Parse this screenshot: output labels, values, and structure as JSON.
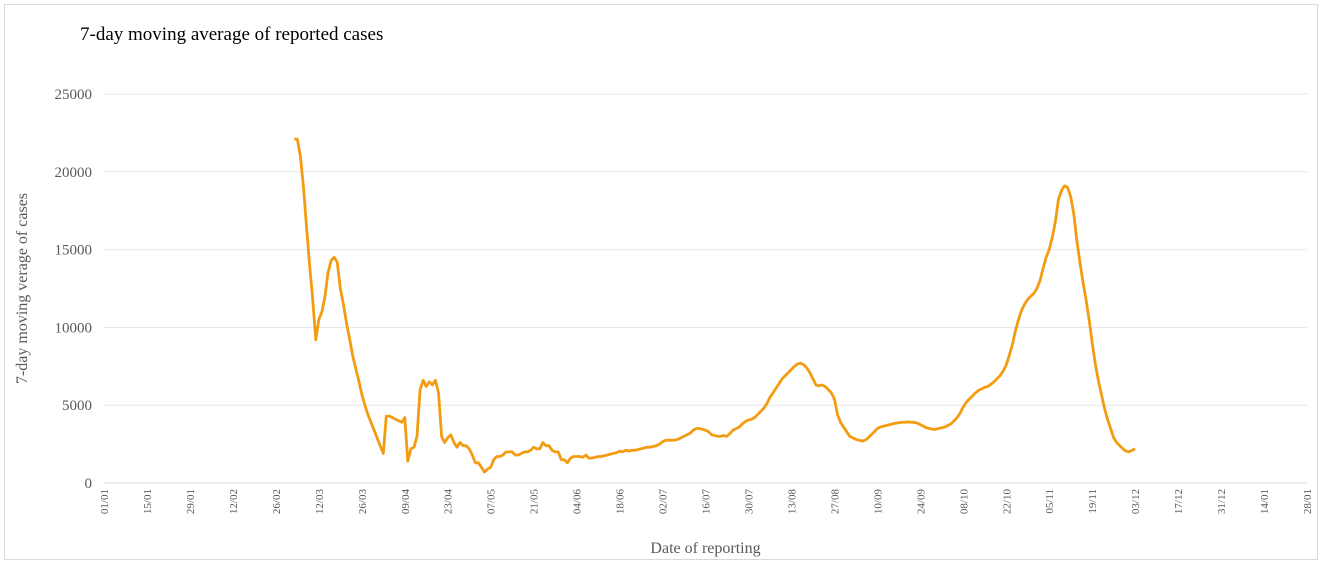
{
  "chart_data": {
    "type": "line",
    "title": "7-day moving average of reported cases",
    "xlabel": "Date of reporting",
    "ylabel": "7-day moving verage of cases",
    "ylim": [
      0,
      25000
    ],
    "yticks": [
      0,
      5000,
      10000,
      15000,
      20000,
      25000
    ],
    "xticks": [
      "01/01",
      "15/01",
      "29/01",
      "12/02",
      "26/02",
      "12/03",
      "26/03",
      "09/04",
      "23/04",
      "07/05",
      "21/05",
      "04/06",
      "18/06",
      "02/07",
      "16/07",
      "30/07",
      "13/08",
      "27/08",
      "10/09",
      "24/09",
      "08/10",
      "22/10",
      "05/11",
      "19/11",
      "03/12",
      "17/12",
      "31/12",
      "14/01",
      "28/01"
    ],
    "grid": "horizontal",
    "legend": "none",
    "color": "#F39C12",
    "series": [
      {
        "values": [
          [
            62,
            22100
          ],
          [
            63,
            22100
          ],
          [
            64,
            21000
          ],
          [
            65,
            19000
          ],
          [
            66,
            16500
          ],
          [
            67,
            14000
          ],
          [
            68,
            11800
          ],
          [
            69,
            9200
          ],
          [
            70,
            10500
          ],
          [
            71,
            11000
          ],
          [
            72,
            12000
          ],
          [
            73,
            13500
          ],
          [
            74,
            14300
          ],
          [
            75,
            14500
          ],
          [
            76,
            14200
          ],
          [
            77,
            12500
          ],
          [
            78,
            11500
          ],
          [
            79,
            10300
          ],
          [
            80,
            9300
          ],
          [
            81,
            8200
          ],
          [
            82,
            7400
          ],
          [
            83,
            6600
          ],
          [
            84,
            5700
          ],
          [
            85,
            5000
          ],
          [
            86,
            4400
          ],
          [
            87,
            3900
          ],
          [
            88,
            3400
          ],
          [
            89,
            2900
          ],
          [
            90,
            2400
          ],
          [
            91,
            1900
          ],
          [
            92,
            4300
          ],
          [
            93,
            4300
          ],
          [
            94,
            4200
          ],
          [
            95,
            4100
          ],
          [
            96,
            4000
          ],
          [
            97,
            3900
          ],
          [
            98,
            4200
          ],
          [
            99,
            1400
          ],
          [
            100,
            2200
          ],
          [
            101,
            2300
          ],
          [
            102,
            3000
          ],
          [
            103,
            6000
          ],
          [
            104,
            6600
          ],
          [
            105,
            6200
          ],
          [
            106,
            6500
          ],
          [
            107,
            6300
          ],
          [
            108,
            6600
          ],
          [
            109,
            5800
          ],
          [
            110,
            3000
          ],
          [
            111,
            2600
          ],
          [
            112,
            2900
          ],
          [
            113,
            3100
          ],
          [
            114,
            2600
          ],
          [
            115,
            2300
          ],
          [
            116,
            2600
          ],
          [
            117,
            2400
          ],
          [
            118,
            2400
          ],
          [
            119,
            2200
          ],
          [
            120,
            1800
          ],
          [
            121,
            1300
          ],
          [
            122,
            1300
          ],
          [
            123,
            1000
          ],
          [
            124,
            700
          ],
          [
            125,
            900
          ],
          [
            126,
            1000
          ],
          [
            127,
            1500
          ],
          [
            128,
            1700
          ],
          [
            129,
            1700
          ],
          [
            130,
            1800
          ],
          [
            131,
            2000
          ],
          [
            132,
            2000
          ],
          [
            133,
            2000
          ],
          [
            134,
            1800
          ],
          [
            135,
            1800
          ],
          [
            136,
            1900
          ],
          [
            137,
            2000
          ],
          [
            138,
            2000
          ],
          [
            139,
            2100
          ],
          [
            140,
            2300
          ],
          [
            141,
            2200
          ],
          [
            142,
            2200
          ],
          [
            143,
            2600
          ],
          [
            144,
            2400
          ],
          [
            145,
            2400
          ],
          [
            146,
            2100
          ],
          [
            147,
            2000
          ],
          [
            148,
            2000
          ],
          [
            149,
            1500
          ],
          [
            150,
            1500
          ],
          [
            151,
            1300
          ],
          [
            152,
            1600
          ],
          [
            153,
            1700
          ],
          [
            154,
            1700
          ],
          [
            155,
            1700
          ],
          [
            156,
            1650
          ],
          [
            157,
            1800
          ],
          [
            158,
            1600
          ],
          [
            159,
            1600
          ],
          [
            160,
            1650
          ],
          [
            161,
            1700
          ],
          [
            162,
            1700
          ],
          [
            163,
            1750
          ],
          [
            164,
            1800
          ],
          [
            165,
            1850
          ],
          [
            166,
            1900
          ],
          [
            167,
            1950
          ],
          [
            168,
            2050
          ],
          [
            169,
            2000
          ],
          [
            170,
            2100
          ],
          [
            171,
            2050
          ],
          [
            172,
            2100
          ],
          [
            173,
            2100
          ],
          [
            174,
            2150
          ],
          [
            175,
            2200
          ],
          [
            176,
            2250
          ],
          [
            177,
            2300
          ],
          [
            178,
            2300
          ],
          [
            179,
            2350
          ],
          [
            180,
            2400
          ],
          [
            181,
            2500
          ],
          [
            182,
            2650
          ],
          [
            183,
            2750
          ],
          [
            184,
            2750
          ],
          [
            185,
            2750
          ],
          [
            186,
            2750
          ],
          [
            187,
            2800
          ],
          [
            188,
            2900
          ],
          [
            189,
            3000
          ],
          [
            190,
            3100
          ],
          [
            191,
            3200
          ],
          [
            192,
            3400
          ],
          [
            193,
            3500
          ],
          [
            194,
            3500
          ],
          [
            195,
            3450
          ],
          [
            196,
            3400
          ],
          [
            197,
            3300
          ],
          [
            198,
            3100
          ],
          [
            199,
            3050
          ],
          [
            200,
            3000
          ],
          [
            201,
            3000
          ],
          [
            202,
            3050
          ],
          [
            203,
            3000
          ],
          [
            204,
            3200
          ],
          [
            205,
            3400
          ],
          [
            206,
            3500
          ],
          [
            207,
            3600
          ],
          [
            208,
            3800
          ],
          [
            209,
            3950
          ],
          [
            210,
            4050
          ],
          [
            211,
            4100
          ],
          [
            212,
            4200
          ],
          [
            213,
            4400
          ],
          [
            214,
            4600
          ],
          [
            215,
            4800
          ],
          [
            216,
            5100
          ],
          [
            217,
            5500
          ],
          [
            218,
            5800
          ],
          [
            219,
            6100
          ],
          [
            220,
            6400
          ],
          [
            221,
            6700
          ],
          [
            222,
            6900
          ],
          [
            223,
            7100
          ],
          [
            224,
            7300
          ],
          [
            225,
            7500
          ],
          [
            226,
            7650
          ],
          [
            227,
            7700
          ],
          [
            228,
            7600
          ],
          [
            229,
            7400
          ],
          [
            230,
            7100
          ],
          [
            231,
            6700
          ],
          [
            232,
            6300
          ],
          [
            233,
            6250
          ],
          [
            234,
            6300
          ],
          [
            235,
            6200
          ],
          [
            236,
            6000
          ],
          [
            237,
            5800
          ],
          [
            238,
            5400
          ],
          [
            239,
            4400
          ],
          [
            240,
            3900
          ],
          [
            241,
            3600
          ],
          [
            242,
            3300
          ],
          [
            243,
            3000
          ],
          [
            244,
            2900
          ],
          [
            245,
            2800
          ],
          [
            246,
            2750
          ],
          [
            247,
            2700
          ],
          [
            248,
            2750
          ],
          [
            249,
            2900
          ],
          [
            250,
            3100
          ],
          [
            251,
            3300
          ],
          [
            252,
            3500
          ],
          [
            253,
            3600
          ],
          [
            254,
            3650
          ],
          [
            255,
            3700
          ],
          [
            256,
            3750
          ],
          [
            257,
            3800
          ],
          [
            258,
            3850
          ],
          [
            259,
            3870
          ],
          [
            260,
            3900
          ],
          [
            261,
            3910
          ],
          [
            262,
            3920
          ],
          [
            263,
            3910
          ],
          [
            264,
            3900
          ],
          [
            265,
            3850
          ],
          [
            266,
            3750
          ],
          [
            267,
            3650
          ],
          [
            268,
            3550
          ],
          [
            269,
            3500
          ],
          [
            270,
            3450
          ],
          [
            271,
            3450
          ],
          [
            272,
            3500
          ],
          [
            273,
            3550
          ],
          [
            274,
            3600
          ],
          [
            275,
            3700
          ],
          [
            276,
            3800
          ],
          [
            277,
            4000
          ],
          [
            278,
            4200
          ],
          [
            279,
            4500
          ],
          [
            280,
            4900
          ],
          [
            281,
            5200
          ],
          [
            282,
            5400
          ],
          [
            283,
            5600
          ],
          [
            284,
            5800
          ],
          [
            285,
            5950
          ],
          [
            286,
            6050
          ],
          [
            287,
            6150
          ],
          [
            288,
            6200
          ],
          [
            289,
            6350
          ],
          [
            290,
            6500
          ],
          [
            291,
            6700
          ],
          [
            292,
            6900
          ],
          [
            293,
            7200
          ],
          [
            294,
            7600
          ],
          [
            295,
            8200
          ],
          [
            296,
            8900
          ],
          [
            297,
            9800
          ],
          [
            298,
            10500
          ],
          [
            299,
            11100
          ],
          [
            300,
            11500
          ],
          [
            301,
            11800
          ],
          [
            302,
            12000
          ],
          [
            303,
            12200
          ],
          [
            304,
            12500
          ],
          [
            305,
            13000
          ],
          [
            306,
            13800
          ],
          [
            307,
            14500
          ],
          [
            308,
            15000
          ],
          [
            309,
            15800
          ],
          [
            310,
            16800
          ],
          [
            311,
            18200
          ],
          [
            312,
            18800
          ],
          [
            313,
            19100
          ],
          [
            314,
            19000
          ],
          [
            315,
            18400
          ],
          [
            316,
            17300
          ],
          [
            317,
            15600
          ],
          [
            318,
            14200
          ],
          [
            319,
            12900
          ],
          [
            320,
            11800
          ],
          [
            321,
            10500
          ],
          [
            322,
            9000
          ],
          [
            323,
            7700
          ],
          [
            324,
            6600
          ],
          [
            325,
            5700
          ],
          [
            326,
            4800
          ],
          [
            327,
            4100
          ],
          [
            328,
            3500
          ],
          [
            329,
            2900
          ],
          [
            330,
            2600
          ],
          [
            331,
            2400
          ],
          [
            332,
            2200
          ],
          [
            333,
            2050
          ],
          [
            334,
            2000
          ],
          [
            335,
            2100
          ],
          [
            336,
            2200
          ]
        ]
      }
    ]
  }
}
